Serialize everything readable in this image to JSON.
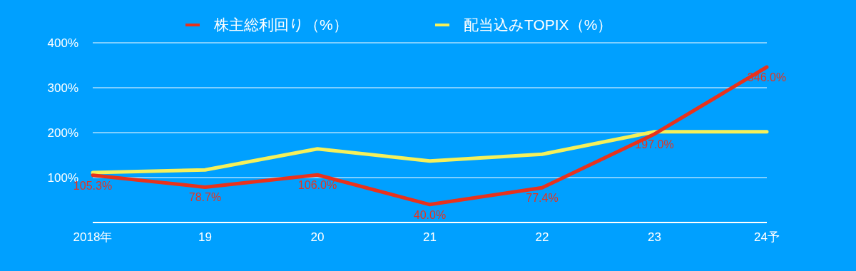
{
  "chart_data": {
    "type": "line",
    "categories": [
      "2018年",
      "19",
      "20",
      "21",
      "22",
      "23",
      "24予"
    ],
    "series": [
      {
        "name": "株主総利回り（%）",
        "color": "#e8321c",
        "values": [
          105.3,
          78.7,
          106.0,
          40.0,
          77.4,
          197.0,
          346.0
        ],
        "value_labels": [
          "105.3%",
          "78.7%",
          "106.0%",
          "40.0%",
          "77.4%",
          "197.0%",
          "346.0%"
        ]
      },
      {
        "name": "配当込みTOPIX（%）",
        "color": "#f5f05a",
        "values": [
          111,
          117,
          164,
          137,
          152,
          202,
          202
        ]
      }
    ],
    "ylim": [
      0,
      400
    ],
    "yticks": [
      {
        "value": 0,
        "label": null
      },
      {
        "value": 100,
        "label": "100%"
      },
      {
        "value": 200,
        "label": "200%"
      },
      {
        "value": 300,
        "label": "300%"
      },
      {
        "value": 400,
        "label": "400%"
      }
    ],
    "grid": "y",
    "legend": "top"
  }
}
